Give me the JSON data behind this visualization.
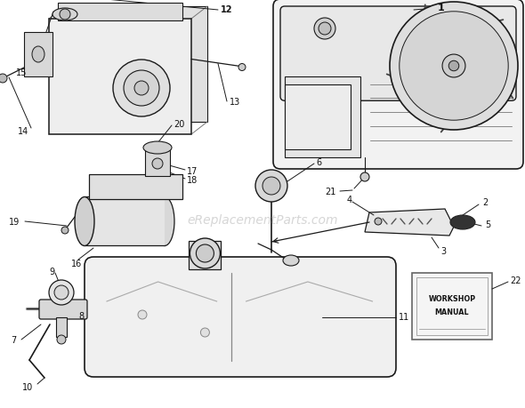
{
  "bg_color": "#ffffff",
  "watermark": "eReplacementParts.com",
  "watermark_color": "#bbbbbb",
  "draw_color": "#1a1a1a",
  "light_gray": "#d8d8d8",
  "mid_gray": "#b0b0b0",
  "dark_gray": "#555555",
  "fig_w": 5.9,
  "fig_h": 4.6,
  "dpi": 100
}
